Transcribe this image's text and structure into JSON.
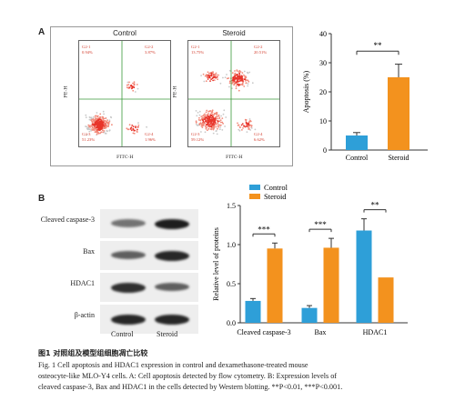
{
  "panel_a": {
    "letter": "A",
    "flow": [
      {
        "title": "Control",
        "quadrants": [
          {
            "label": "G2-1",
            "value": "0.94%"
          },
          {
            "label": "G2-2",
            "value": "3.87%"
          },
          {
            "label": "G2-3",
            "value": "51.23%"
          },
          {
            "label": "G2-4",
            "value": "1.96%"
          }
        ],
        "ylabel": "PE-H",
        "xlabel": "FITC-H"
      },
      {
        "title": "Steroid",
        "quadrants": [
          {
            "label": "G2-1",
            "value": "13.75%"
          },
          {
            "label": "G2-2",
            "value": "20.51%"
          },
          {
            "label": "G2-3",
            "value": "59.12%"
          },
          {
            "label": "G2-4",
            "value": "6.62%"
          }
        ],
        "ylabel": "PE-H",
        "xlabel": "FITC-H"
      }
    ]
  },
  "panel_b": {
    "letter": "B",
    "wb_rows": [
      "Cleaved caspase-3",
      "Bax",
      "HDAC1",
      "β-actin"
    ],
    "wb_cols": [
      "Control",
      "Steroid"
    ],
    "wb_intensity": [
      [
        0.45,
        0.9
      ],
      [
        0.55,
        0.85
      ],
      [
        0.8,
        0.55
      ],
      [
        0.85,
        0.85
      ]
    ]
  },
  "chart_data": [
    {
      "type": "bar",
      "categories": [
        "Control",
        "Steroid"
      ],
      "values": [
        5,
        25
      ],
      "errors": [
        1,
        4.5
      ],
      "ylabel": "Apoptosis (%)",
      "ylim": [
        0,
        40
      ],
      "yticks": [
        0,
        10,
        20,
        30,
        40
      ],
      "significance": "**",
      "colors": [
        "#2e9fd8",
        "#f3921e"
      ]
    },
    {
      "type": "bar",
      "categories": [
        "Cleaved caspase-3",
        "Bax",
        "HDAC1"
      ],
      "series": [
        {
          "name": "Control",
          "values": [
            0.28,
            0.19,
            1.18
          ],
          "errors": [
            0.03,
            0.03,
            0.15
          ],
          "color": "#2e9fd8"
        },
        {
          "name": "Steroid",
          "values": [
            0.95,
            0.96,
            0.58
          ],
          "errors": [
            0.07,
            0.12,
            0.0
          ],
          "color": "#f3921e"
        }
      ],
      "ylabel": "Relative level of proteins",
      "ylim": [
        0,
        1.5
      ],
      "yticks": [
        "0.0",
        "0.5",
        "1.0",
        "1.5"
      ],
      "significance": [
        "***",
        "***",
        "**"
      ],
      "legend": "top-left"
    }
  ],
  "caption": {
    "cn": "图1 对照组及模型组细胞凋亡比较",
    "line1": "Fig. 1  Cell apoptosis and HDAC1 expression in control and dexamethasone-treated mouse",
    "line2": "osteocyte-like MLO-Y4 cells. A: Cell apoptosis detected by flow cytometry. B: Expression levels of",
    "line3": "cleaved caspase-3, Bax and HDAC1 in the cells detected by Western blotting. **P<0.01, ***P<0.001."
  }
}
